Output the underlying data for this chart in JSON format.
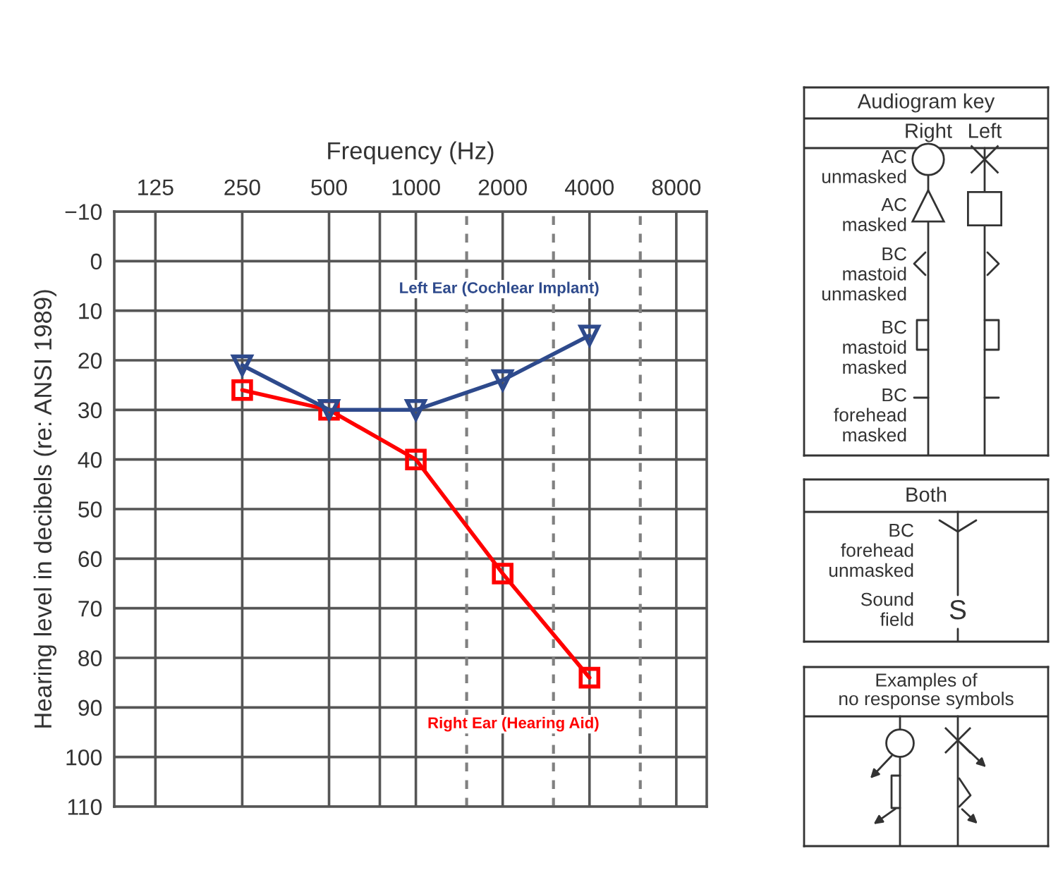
{
  "chart_data": [
    {
      "type": "line",
      "xlabel": "Frequency (Hz)",
      "ylabel": "Hearing level in decibels (re: ANSI 1989)",
      "log": "x",
      "xlim": [
        90,
        10200
      ],
      "ylim": [
        110,
        -10
      ],
      "xticks": [
        125,
        250,
        500,
        {
          "value": 750,
          "label": null
        },
        1000,
        2000,
        4000,
        8000
      ],
      "yticks": [
        {
          "value": -10,
          "label": "−10"
        },
        0,
        10,
        20,
        30,
        40,
        50,
        60,
        70,
        80,
        90,
        100,
        110
      ],
      "grid": true,
      "legend": false,
      "ref_lines": [
        {
          "axis": "x",
          "value": 1500,
          "line_style": "dashed",
          "color": "#808080"
        },
        {
          "axis": "x",
          "value": 3000,
          "line_style": "dashed",
          "color": "#808080"
        },
        {
          "axis": "x",
          "value": 6000,
          "line_style": "dashed",
          "color": "#808080"
        }
      ],
      "x": [
        250,
        500,
        1000,
        2000,
        4000
      ],
      "series": [
        {
          "name": "Left Ear (Cochlear Implant)",
          "color": "#2e4a8c",
          "marker": "triangle",
          "values": [
            21,
            30,
            30,
            24,
            15
          ]
        },
        {
          "name": "Right Ear (Hearing Aid)",
          "color": "#ff0000",
          "marker": "square",
          "values": [
            26,
            30,
            40,
            63,
            84
          ]
        }
      ]
    },
    {
      "type": "other",
      "title": "Audiogram key",
      "annotations": [
        "Right",
        "Left",
        "AC\nunmasked",
        "AC\nmasked",
        "BC\nmastoid\nunmasked",
        "BC\nmastoid\nmasked",
        "BC\nforehead\nmasked"
      ]
    },
    {
      "type": "other",
      "title": "Both",
      "annotations": [
        "BC\nforehead\nunmasked",
        "Sound\nfield",
        "S"
      ]
    },
    {
      "type": "other",
      "title": "Examples of\nno response symbols"
    }
  ]
}
